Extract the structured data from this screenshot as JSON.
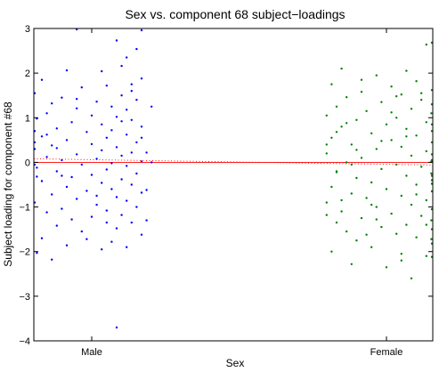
{
  "chart_data": {
    "type": "scatter",
    "title": "Sex vs. component 68 subject−loadings",
    "xlabel": "Sex",
    "ylabel": "Subject loading for component #68",
    "categories": [
      "Male",
      "Female"
    ],
    "ylim": [
      -4,
      3
    ],
    "yticks": [
      3,
      2,
      1,
      0,
      -1,
      -2,
      -3,
      -4
    ],
    "ytick_labels": [
      "3",
      "2",
      "1",
      "0",
      "−1",
      "−2",
      "−3",
      "−4"
    ],
    "grid": false,
    "colors": {
      "male": "#0000ff",
      "female": "#008000",
      "zero_line": "#ff0000",
      "fit_line": "#ff0000"
    },
    "zero_line": 0,
    "fit_line": {
      "male_mean": 0.08,
      "female_mean": -0.06
    },
    "jitter_range": [
      -0.12,
      0.12
    ],
    "series": [
      {
        "category": "Male",
        "points": [
          [
            -0.03,
            2.98
          ],
          [
            0.1,
            2.96
          ],
          [
            0.05,
            2.73
          ],
          [
            0.09,
            2.54
          ],
          [
            0.07,
            2.35
          ],
          [
            0.06,
            2.16
          ],
          [
            -0.05,
            2.06
          ],
          [
            0.02,
            2.04
          ],
          [
            0.1,
            1.88
          ],
          [
            -0.12,
            1.55
          ],
          [
            0.08,
            1.6
          ],
          [
            0.03,
            1.72
          ],
          [
            -0.02,
            1.68
          ],
          [
            0.06,
            1.5
          ],
          [
            -0.06,
            1.45
          ],
          [
            0.09,
            1.4
          ],
          [
            0.01,
            1.36
          ],
          [
            -0.08,
            1.32
          ],
          [
            0.04,
            1.25
          ],
          [
            -0.03,
            1.21
          ],
          [
            0.07,
            1.18
          ],
          [
            -0.09,
            1.1
          ],
          [
            0.0,
            1.05
          ],
          [
            0.05,
            1.02
          ],
          [
            -0.11,
            0.98
          ],
          [
            0.08,
            0.95
          ],
          [
            -0.04,
            0.9
          ],
          [
            0.02,
            0.85
          ],
          [
            0.1,
            0.8
          ],
          [
            -0.07,
            0.76
          ],
          [
            0.04,
            0.72
          ],
          [
            -0.01,
            0.68
          ],
          [
            0.07,
            0.62
          ],
          [
            -0.1,
            0.58
          ],
          [
            0.03,
            0.55
          ],
          [
            -0.05,
            0.5
          ],
          [
            0.09,
            0.45
          ],
          [
            0.0,
            0.41
          ],
          [
            -0.08,
            0.38
          ],
          [
            0.05,
            0.34
          ],
          [
            -0.12,
            0.3
          ],
          [
            0.02,
            0.27
          ],
          [
            0.08,
            0.22
          ],
          [
            -0.03,
            0.18
          ],
          [
            0.06,
            0.15
          ],
          [
            -0.09,
            0.12
          ],
          [
            0.01,
            0.08
          ],
          [
            -0.06,
            0.05
          ],
          [
            0.1,
            0.02
          ],
          [
            0.04,
            -0.02
          ],
          [
            -0.02,
            -0.05
          ],
          [
            0.07,
            -0.08
          ],
          [
            -0.11,
            -0.12
          ],
          [
            0.03,
            -0.16
          ],
          [
            -0.07,
            -0.2
          ],
          [
            0.09,
            -0.25
          ],
          [
            0.0,
            -0.28
          ],
          [
            -0.04,
            -0.33
          ],
          [
            0.06,
            -0.38
          ],
          [
            -0.1,
            -0.42
          ],
          [
            0.02,
            -0.46
          ],
          [
            0.08,
            -0.5
          ],
          [
            -0.05,
            -0.55
          ],
          [
            0.04,
            -0.6
          ],
          [
            -0.01,
            -0.64
          ],
          [
            0.1,
            -0.68
          ],
          [
            -0.08,
            -0.72
          ],
          [
            0.05,
            -0.78
          ],
          [
            -0.03,
            -0.82
          ],
          [
            0.07,
            -0.86
          ],
          [
            -0.12,
            -0.9
          ],
          [
            0.01,
            -0.95
          ],
          [
            0.09,
            -1.0
          ],
          [
            -0.06,
            -1.04
          ],
          [
            0.03,
            -1.08
          ],
          [
            -0.09,
            -1.12
          ],
          [
            0.06,
            -1.18
          ],
          [
            0.0,
            -1.22
          ],
          [
            -0.04,
            -1.28
          ],
          [
            0.08,
            -1.35
          ],
          [
            -0.07,
            -1.42
          ],
          [
            0.05,
            -1.48
          ],
          [
            -0.02,
            -1.55
          ],
          [
            0.1,
            -1.62
          ],
          [
            -0.1,
            -1.7
          ],
          [
            0.04,
            -1.78
          ],
          [
            -0.05,
            -1.86
          ],
          [
            0.07,
            -1.9
          ],
          [
            0.02,
            -1.95
          ],
          [
            -0.11,
            -2.03
          ],
          [
            -0.08,
            -2.18
          ],
          [
            0.05,
            -3.7
          ],
          [
            -0.12,
            0.45
          ],
          [
            0.11,
            0.22
          ],
          [
            -0.11,
            -0.32
          ],
          [
            0.11,
            -0.62
          ],
          [
            -0.12,
            0.7
          ],
          [
            0.12,
            1.25
          ],
          [
            -0.1,
            1.85
          ],
          [
            0.11,
            -1.3
          ],
          [
            -0.09,
            0.62
          ],
          [
            0.06,
            0.92
          ],
          [
            -0.03,
            1.42
          ],
          [
            0.03,
            -1.35
          ],
          [
            -0.06,
            -0.3
          ],
          [
            0.1,
            0.55
          ],
          [
            -0.01,
            -1.72
          ],
          [
            0.08,
            1.75
          ],
          [
            -0.07,
            0.32
          ],
          [
            0.01,
            -0.75
          ],
          [
            0.12,
            0.0
          ],
          [
            -0.12,
            -0.05
          ]
        ]
      },
      {
        "category": "Female",
        "points": [
          [
            0.08,
            2.64
          ],
          [
            0.12,
            2.68
          ],
          [
            -0.09,
            2.1
          ],
          [
            0.04,
            2.05
          ],
          [
            -0.02,
            1.95
          ],
          [
            0.06,
            1.82
          ],
          [
            -0.11,
            1.75
          ],
          [
            0.01,
            1.7
          ],
          [
            0.1,
            1.62
          ],
          [
            -0.05,
            1.58
          ],
          [
            0.03,
            1.52
          ],
          [
            -0.08,
            1.46
          ],
          [
            0.07,
            1.4
          ],
          [
            -0.01,
            1.35
          ],
          [
            0.11,
            1.3
          ],
          [
            -0.1,
            1.25
          ],
          [
            0.05,
            1.2
          ],
          [
            -0.04,
            1.15
          ],
          [
            0.09,
            1.1
          ],
          [
            -0.12,
            1.05
          ],
          [
            0.02,
            1.0
          ],
          [
            -0.06,
            0.95
          ],
          [
            0.08,
            0.9
          ],
          [
            0.0,
            0.85
          ],
          [
            -0.09,
            0.8
          ],
          [
            0.04,
            0.75
          ],
          [
            0.12,
            0.7
          ],
          [
            -0.03,
            0.65
          ],
          [
            0.06,
            0.6
          ],
          [
            -0.11,
            0.55
          ],
          [
            0.01,
            0.5
          ],
          [
            0.1,
            0.45
          ],
          [
            -0.07,
            0.4
          ],
          [
            0.03,
            0.35
          ],
          [
            -0.02,
            0.3
          ],
          [
            0.08,
            0.25
          ],
          [
            -0.12,
            0.2
          ],
          [
            0.05,
            0.15
          ],
          [
            -0.05,
            0.1
          ],
          [
            0.11,
            0.05
          ],
          [
            -0.08,
            0.0
          ],
          [
            0.02,
            -0.05
          ],
          [
            0.07,
            -0.1
          ],
          [
            -0.01,
            -0.15
          ],
          [
            -0.1,
            -0.2
          ],
          [
            0.09,
            -0.25
          ],
          [
            0.04,
            -0.3
          ],
          [
            -0.06,
            -0.35
          ],
          [
            0.12,
            -0.4
          ],
          [
            -0.03,
            -0.45
          ],
          [
            0.06,
            -0.5
          ],
          [
            -0.11,
            -0.55
          ],
          [
            0.0,
            -0.6
          ],
          [
            0.1,
            -0.65
          ],
          [
            -0.07,
            -0.7
          ],
          [
            0.03,
            -0.75
          ],
          [
            -0.04,
            -0.8
          ],
          [
            0.08,
            -0.85
          ],
          [
            -0.12,
            -0.9
          ],
          [
            0.05,
            -0.95
          ],
          [
            -0.02,
            -1.0
          ],
          [
            0.11,
            -1.05
          ],
          [
            -0.09,
            -1.1
          ],
          [
            0.01,
            -1.15
          ],
          [
            0.07,
            -1.2
          ],
          [
            -0.05,
            -1.25
          ],
          [
            0.09,
            -1.3
          ],
          [
            -0.1,
            -1.35
          ],
          [
            0.04,
            -1.4
          ],
          [
            -0.01,
            -1.45
          ],
          [
            0.12,
            -1.5
          ],
          [
            -0.08,
            -1.55
          ],
          [
            0.02,
            -1.6
          ],
          [
            0.06,
            -1.68
          ],
          [
            -0.06,
            -1.75
          ],
          [
            0.1,
            -1.82
          ],
          [
            -0.03,
            -1.9
          ],
          [
            0.08,
            -2.1
          ],
          [
            -0.11,
            -2.0
          ],
          [
            0.03,
            -2.2
          ],
          [
            -0.07,
            -2.28
          ],
          [
            0.0,
            -2.35
          ],
          [
            0.05,
            -2.6
          ],
          [
            0.11,
            -2.12
          ],
          [
            -0.12,
            0.4
          ],
          [
            0.12,
            0.18
          ],
          [
            -0.1,
            -0.22
          ],
          [
            0.1,
            -0.48
          ],
          [
            -0.08,
            0.88
          ],
          [
            0.07,
            1.55
          ],
          [
            -0.04,
            -1.62
          ],
          [
            0.04,
            0.58
          ],
          [
            -0.09,
            -0.85
          ],
          [
            0.09,
            0.02
          ],
          [
            -0.02,
            -1.28
          ],
          [
            0.01,
            1.12
          ],
          [
            -0.06,
            0.28
          ],
          [
            0.06,
            -0.72
          ],
          [
            -0.12,
            -1.18
          ],
          [
            0.12,
            -0.3
          ],
          [
            -0.05,
            1.85
          ],
          [
            0.03,
            -2.05
          ],
          [
            -0.1,
            0.68
          ],
          [
            0.08,
            -1.4
          ],
          [
            -0.01,
            0.48
          ],
          [
            0.11,
            0.85
          ],
          [
            -0.07,
            -0.05
          ],
          [
            0.02,
            1.48
          ],
          [
            -0.03,
            -0.95
          ],
          [
            0.09,
            -1.72
          ]
        ]
      }
    ]
  }
}
